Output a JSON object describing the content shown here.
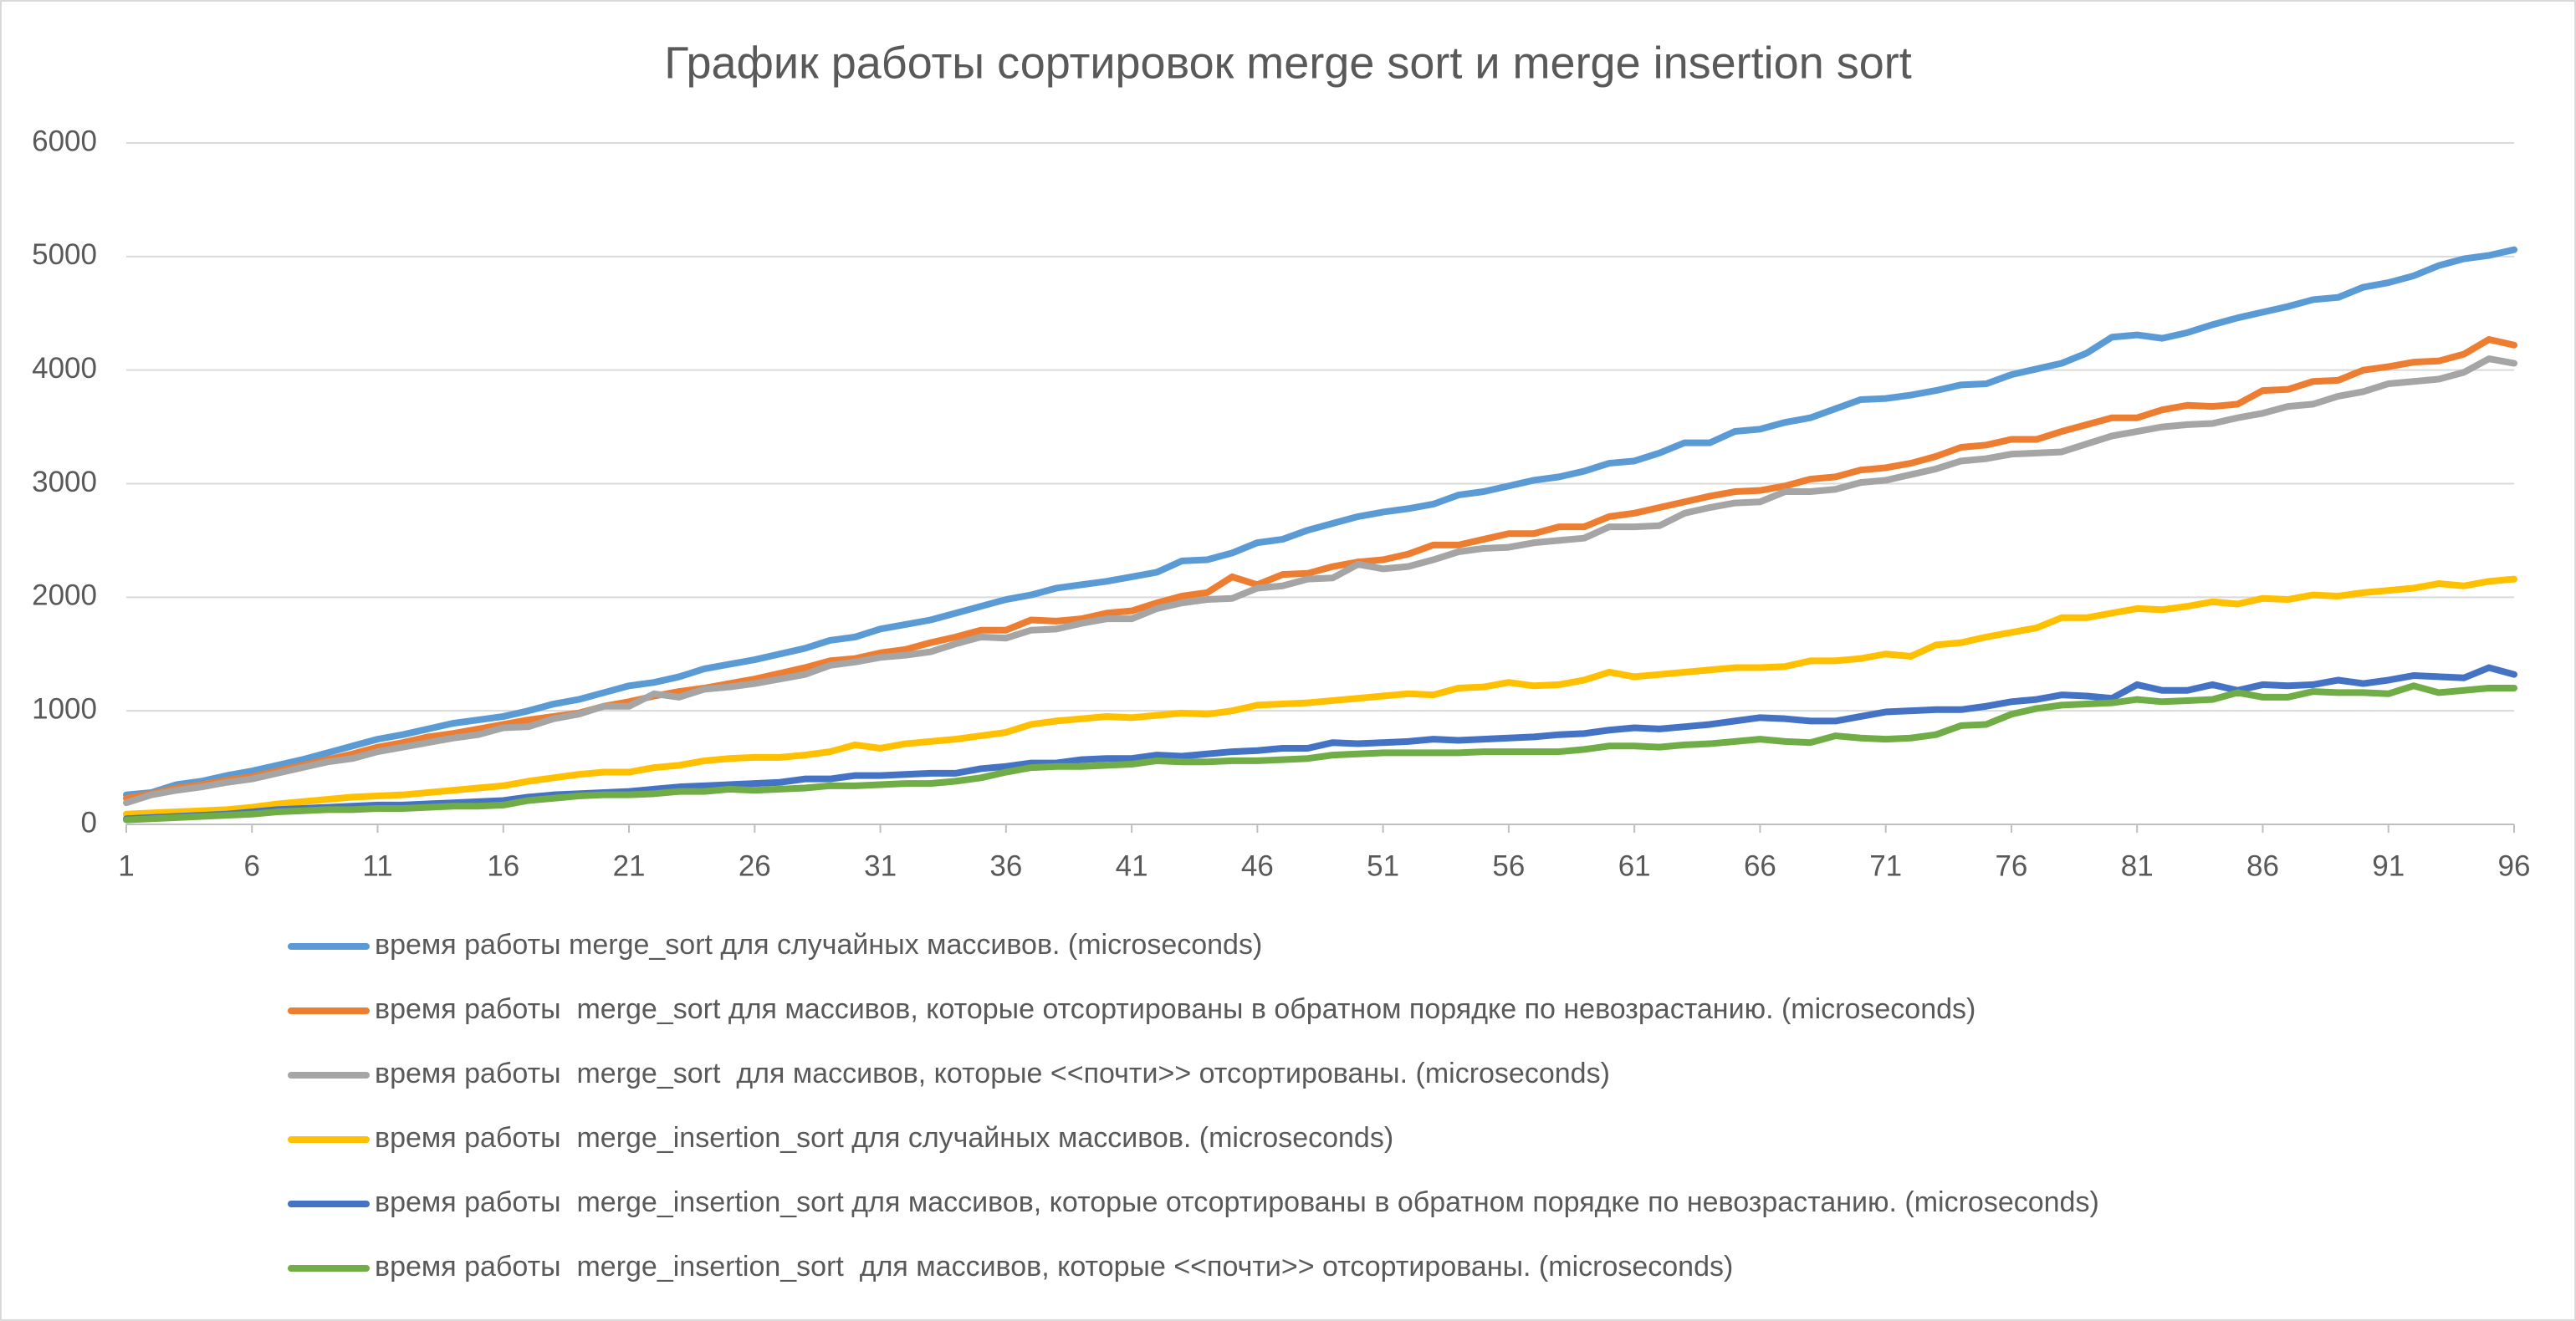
{
  "chart_data": {
    "type": "line",
    "title": "График работы сортировок merge sort и merge insertion sort",
    "x": [
      1,
      2,
      3,
      4,
      5,
      6,
      7,
      8,
      9,
      10,
      11,
      12,
      13,
      14,
      15,
      16,
      17,
      18,
      19,
      20,
      21,
      22,
      23,
      24,
      25,
      26,
      27,
      28,
      29,
      30,
      31,
      32,
      33,
      34,
      35,
      36,
      37,
      38,
      39,
      40,
      41,
      42,
      43,
      44,
      45,
      46,
      47,
      48,
      49,
      50,
      51,
      52,
      53,
      54,
      55,
      56,
      57,
      58,
      59,
      60,
      61,
      62,
      63,
      64,
      65,
      66,
      67,
      68,
      69,
      70,
      71,
      72,
      73,
      74,
      75,
      76,
      77,
      78,
      79,
      80,
      81,
      82,
      83,
      84,
      85,
      86,
      87,
      88,
      89,
      90,
      91,
      92,
      93,
      94,
      95,
      96
    ],
    "xlim": [
      1,
      96
    ],
    "xticks": [
      1,
      6,
      11,
      16,
      21,
      26,
      31,
      36,
      41,
      46,
      51,
      56,
      61,
      66,
      71,
      76,
      81,
      86,
      91,
      96
    ],
    "ylim": [
      0,
      6000
    ],
    "yticks": [
      0,
      1000,
      2000,
      3000,
      4000,
      5000,
      6000
    ],
    "grid": true,
    "legend": "bottom",
    "series": [
      {
        "name": "время работы merge_sort для случайных массивов. (microseconds)",
        "color": "#5b9bd5",
        "values": [
          260,
          280,
          350,
          380,
          430,
          470,
          520,
          570,
          630,
          690,
          750,
          790,
          840,
          890,
          920,
          950,
          1000,
          1060,
          1100,
          1160,
          1220,
          1250,
          1300,
          1370,
          1410,
          1450,
          1500,
          1550,
          1620,
          1650,
          1720,
          1760,
          1800,
          1860,
          1920,
          1980,
          2020,
          2080,
          2110,
          2140,
          2180,
          2220,
          2320,
          2330,
          2390,
          2480,
          2510,
          2590,
          2650,
          2710,
          2750,
          2780,
          2820,
          2900,
          2930,
          2980,
          3030,
          3060,
          3110,
          3180,
          3200,
          3270,
          3360,
          3360,
          3460,
          3480,
          3540,
          3580,
          3660,
          3740,
          3750,
          3780,
          3820,
          3870,
          3880,
          3960,
          4010,
          4060,
          4150,
          4290,
          4310,
          4280,
          4330,
          4400,
          4460,
          4510,
          4560,
          4620,
          4640,
          4730,
          4770,
          4830,
          4920,
          4980,
          5010,
          5060
        ]
      },
      {
        "name": "время работы  merge_sort для массивов, которые отсортированы в обратном порядке по невозрастанию. (microseconds)",
        "color": "#ed7d31",
        "values": [
          230,
          270,
          320,
          350,
          390,
          420,
          470,
          520,
          570,
          620,
          680,
          720,
          770,
          800,
          840,
          880,
          920,
          950,
          980,
          1040,
          1080,
          1130,
          1170,
          1200,
          1240,
          1280,
          1330,
          1380,
          1440,
          1460,
          1510,
          1540,
          1600,
          1650,
          1710,
          1710,
          1800,
          1790,
          1810,
          1860,
          1880,
          1950,
          2010,
          2040,
          2180,
          2110,
          2200,
          2210,
          2270,
          2310,
          2330,
          2380,
          2460,
          2460,
          2510,
          2560,
          2560,
          2620,
          2620,
          2710,
          2740,
          2790,
          2840,
          2890,
          2930,
          2940,
          2980,
          3040,
          3060,
          3120,
          3140,
          3180,
          3240,
          3320,
          3340,
          3390,
          3390,
          3460,
          3520,
          3580,
          3580,
          3650,
          3690,
          3680,
          3700,
          3820,
          3830,
          3900,
          3910,
          4000,
          4030,
          4070,
          4080,
          4140,
          4270,
          4220
        ]
      },
      {
        "name": "время работы  merge_sort  для массивов, которые <<почти>> отсортированы. (microseconds)",
        "color": "#a5a5a5",
        "values": [
          190,
          260,
          300,
          330,
          370,
          400,
          450,
          500,
          550,
          580,
          640,
          680,
          720,
          760,
          790,
          850,
          860,
          930,
          970,
          1040,
          1040,
          1150,
          1120,
          1190,
          1210,
          1240,
          1280,
          1320,
          1400,
          1430,
          1470,
          1490,
          1520,
          1590,
          1650,
          1640,
          1710,
          1720,
          1770,
          1810,
          1810,
          1900,
          1950,
          1980,
          1990,
          2080,
          2100,
          2160,
          2170,
          2290,
          2250,
          2270,
          2330,
          2400,
          2430,
          2440,
          2480,
          2500,
          2520,
          2620,
          2620,
          2630,
          2740,
          2790,
          2830,
          2840,
          2930,
          2930,
          2950,
          3010,
          3030,
          3080,
          3130,
          3200,
          3220,
          3260,
          3270,
          3280,
          3350,
          3420,
          3460,
          3500,
          3520,
          3530,
          3580,
          3620,
          3680,
          3700,
          3770,
          3810,
          3880,
          3900,
          3920,
          3980,
          4100,
          4060
        ]
      },
      {
        "name": "время работы  merge_insertion_sort для случайных массивов. (microseconds)",
        "color": "#ffc000",
        "values": [
          90,
          100,
          110,
          120,
          130,
          150,
          180,
          200,
          220,
          240,
          250,
          260,
          280,
          300,
          320,
          340,
          380,
          410,
          440,
          460,
          460,
          500,
          520,
          560,
          580,
          590,
          590,
          610,
          640,
          700,
          670,
          710,
          730,
          750,
          780,
          810,
          880,
          910,
          930,
          950,
          940,
          960,
          980,
          970,
          1000,
          1050,
          1060,
          1070,
          1090,
          1110,
          1130,
          1150,
          1140,
          1200,
          1210,
          1250,
          1220,
          1230,
          1270,
          1340,
          1300,
          1320,
          1340,
          1360,
          1380,
          1380,
          1390,
          1440,
          1440,
          1460,
          1500,
          1480,
          1580,
          1600,
          1650,
          1690,
          1730,
          1820,
          1820,
          1860,
          1900,
          1890,
          1920,
          1960,
          1940,
          1990,
          1980,
          2020,
          2010,
          2040,
          2060,
          2080,
          2120,
          2100,
          2140,
          2160
        ]
      },
      {
        "name": "время работы  merge_insertion_sort для массивов, которые отсортированы в обратном порядке по невозрастанию. (microseconds)",
        "color": "#4472c4",
        "values": [
          50,
          60,
          70,
          80,
          90,
          110,
          130,
          140,
          150,
          160,
          170,
          170,
          180,
          190,
          200,
          210,
          240,
          260,
          270,
          280,
          290,
          310,
          330,
          340,
          350,
          360,
          370,
          400,
          400,
          430,
          430,
          440,
          450,
          450,
          490,
          510,
          540,
          540,
          570,
          580,
          580,
          610,
          600,
          620,
          640,
          650,
          670,
          670,
          720,
          710,
          720,
          730,
          750,
          740,
          750,
          760,
          770,
          790,
          800,
          830,
          850,
          840,
          860,
          880,
          910,
          940,
          930,
          910,
          910,
          950,
          990,
          1000,
          1010,
          1010,
          1040,
          1080,
          1100,
          1140,
          1130,
          1110,
          1230,
          1180,
          1180,
          1230,
          1180,
          1230,
          1220,
          1230,
          1270,
          1240,
          1270,
          1310,
          1300,
          1290,
          1380,
          1320
        ]
      },
      {
        "name": "время работы  merge_insertion_sort  для массивов, которые <<почти>> отсортированы. (microseconds)",
        "color": "#70ad47",
        "values": [
          40,
          50,
          60,
          70,
          80,
          90,
          110,
          120,
          130,
          130,
          140,
          140,
          150,
          160,
          160,
          170,
          210,
          230,
          250,
          260,
          260,
          270,
          290,
          290,
          310,
          300,
          310,
          320,
          340,
          340,
          350,
          360,
          360,
          380,
          410,
          460,
          500,
          510,
          510,
          520,
          530,
          560,
          550,
          550,
          560,
          560,
          570,
          580,
          610,
          620,
          630,
          630,
          630,
          630,
          640,
          640,
          640,
          640,
          660,
          690,
          690,
          680,
          700,
          710,
          730,
          750,
          730,
          720,
          780,
          760,
          750,
          760,
          790,
          870,
          880,
          970,
          1020,
          1050,
          1060,
          1070,
          1100,
          1080,
          1090,
          1100,
          1160,
          1120,
          1120,
          1170,
          1160,
          1160,
          1150,
          1220,
          1160,
          1180,
          1200,
          1200
        ]
      }
    ]
  }
}
